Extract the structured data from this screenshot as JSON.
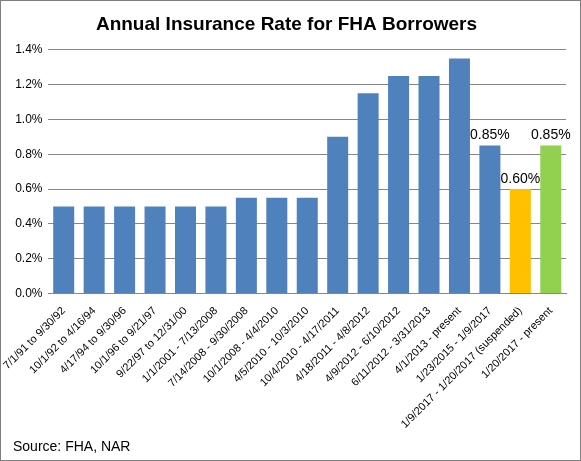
{
  "chart_data": {
    "type": "bar",
    "title": "Annual Insurance Rate for FHA Borrowers",
    "source": "Source: FHA, NAR",
    "categories": [
      "7/1/91 to 9/30/92",
      "10/1/92 to 4/16/94",
      "4/17/94 to 9/30/96",
      "10/1/96 to 9/21/97",
      "9/22/97 to 12/31/00",
      "1/1/2001 - 7/13/2008",
      "7/14/2008 - 9/30/2008",
      "10/1/2008 - 4/4/2010",
      "4/5/2010 - 10/3/2010",
      "10/4/2010 - 4/17/2011",
      "4/18/2011 - 4/8/2012",
      "4/9/2012 - 6/10/2012",
      "6/11/2012 - 3/31/2013",
      "4/1/2013 - present",
      "1/23/2015 - 1/9/2017",
      "1/9/2017 - 1/20/2017 (suspended)",
      "1/20/2017 - present"
    ],
    "values": [
      0.5,
      0.5,
      0.5,
      0.5,
      0.5,
      0.5,
      0.55,
      0.55,
      0.55,
      0.9,
      1.15,
      1.25,
      1.25,
      1.35,
      0.85,
      0.6,
      0.85
    ],
    "value_labels": [
      null,
      null,
      null,
      null,
      null,
      null,
      null,
      null,
      null,
      null,
      null,
      null,
      null,
      null,
      "0.85%",
      "0.60%",
      "0.85%"
    ],
    "data_labels": true,
    "colors": [
      "#4f81bd",
      "#4f81bd",
      "#4f81bd",
      "#4f81bd",
      "#4f81bd",
      "#4f81bd",
      "#4f81bd",
      "#4f81bd",
      "#4f81bd",
      "#4f81bd",
      "#4f81bd",
      "#4f81bd",
      "#4f81bd",
      "#4f81bd",
      "#4f81bd",
      "#ffc000",
      "#92d050"
    ],
    "ylim": [
      0,
      1.4
    ],
    "yticks": [
      {
        "value": 0,
        "label": "0.0%"
      },
      {
        "value": 0.2,
        "label": "0.2%"
      },
      {
        "value": 0.4,
        "label": "0.4%"
      },
      {
        "value": 0.6,
        "label": "0.6%"
      },
      {
        "value": 0.8,
        "label": "0.8%"
      },
      {
        "value": 1.0,
        "label": "1.0%"
      },
      {
        "value": 1.2,
        "label": "1.2%"
      },
      {
        "value": 1.4,
        "label": "1.4%"
      }
    ],
    "grid": true
  }
}
